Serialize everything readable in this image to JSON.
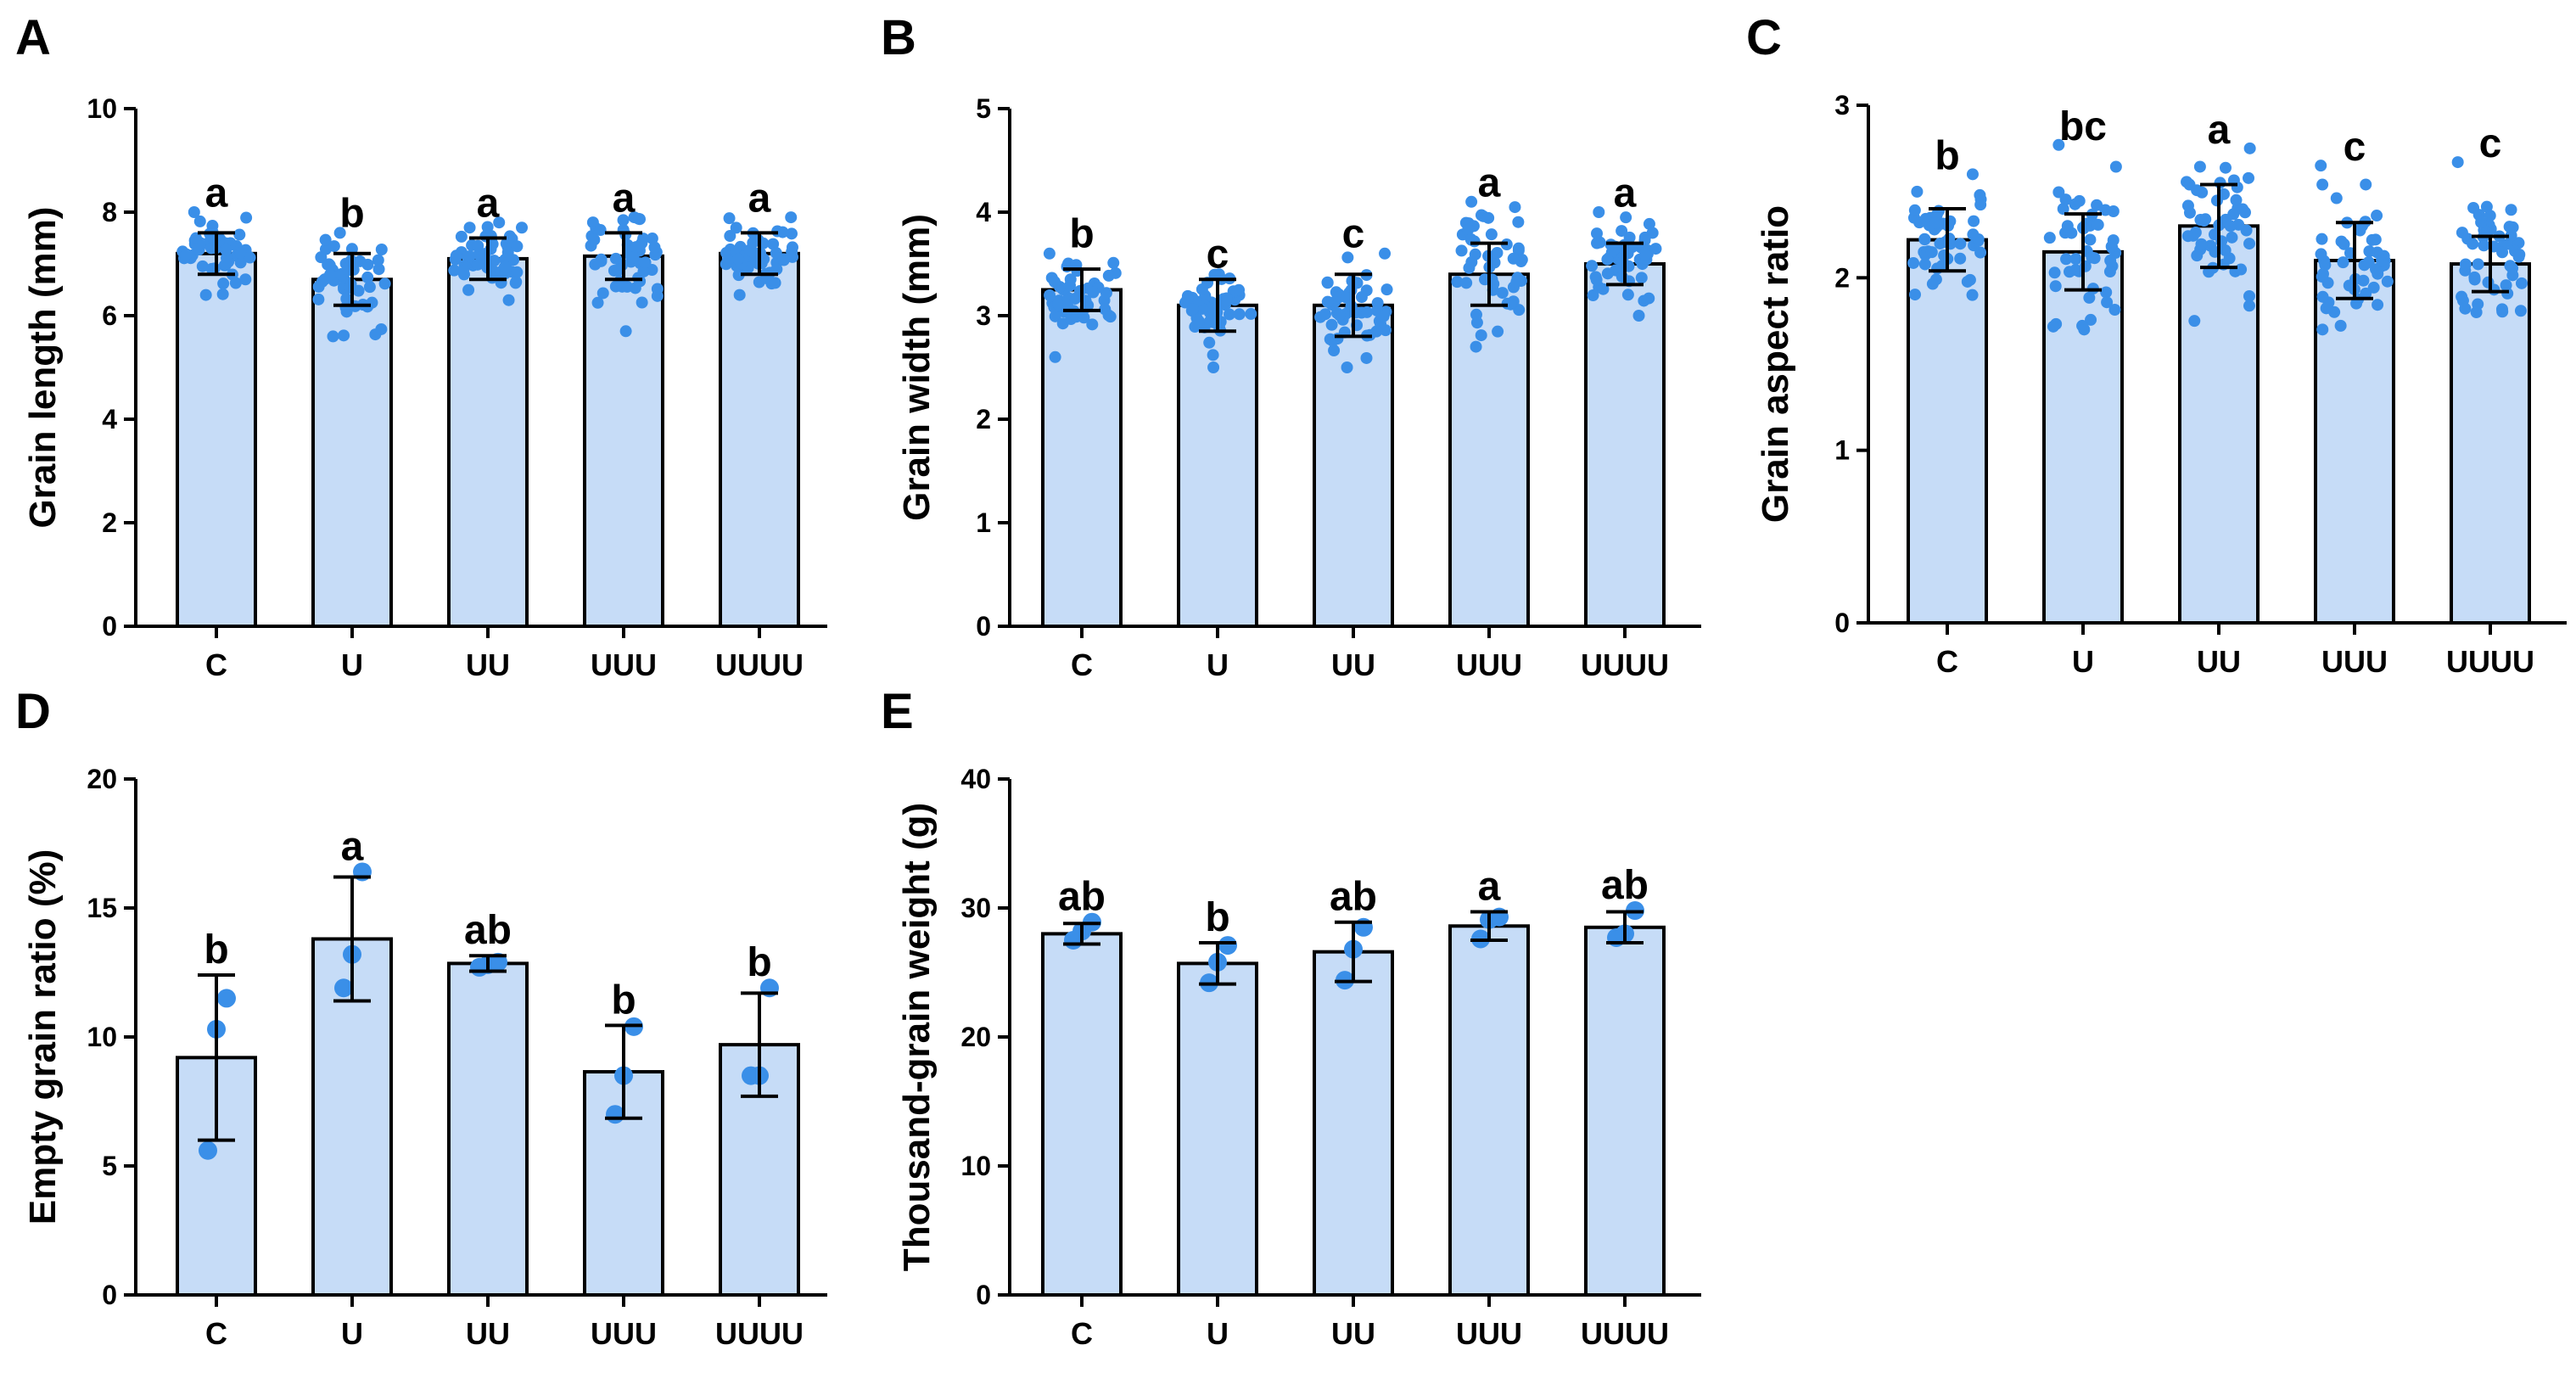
{
  "colors": {
    "bar_fill": "#c6dcf7",
    "dot": "#3a8fe8",
    "stroke": "#000000"
  },
  "chart_data": [
    {
      "id": "A",
      "panel_label": "A",
      "type": "bar",
      "ylabel": "Grain length (mm)",
      "ylim": [
        0,
        10
      ],
      "yticks": [
        0,
        2,
        4,
        6,
        8,
        10
      ],
      "categories": [
        "C",
        "U",
        "UU",
        "UUU",
        "UUUU"
      ],
      "values": [
        7.2,
        6.7,
        7.1,
        7.15,
        7.2
      ],
      "errors": [
        0.4,
        0.5,
        0.4,
        0.45,
        0.4
      ],
      "letters": [
        "a",
        "b",
        "a",
        "a",
        "a"
      ],
      "n_points": 50,
      "point_spread": [
        [
          6.4,
          8.0
        ],
        [
          5.6,
          7.6
        ],
        [
          6.3,
          7.8
        ],
        [
          5.7,
          7.9
        ],
        [
          6.4,
          7.9
        ]
      ]
    },
    {
      "id": "B",
      "panel_label": "B",
      "type": "bar",
      "ylabel": "Grain width (mm)",
      "ylim": [
        0,
        5
      ],
      "yticks": [
        0,
        1,
        2,
        3,
        4,
        5
      ],
      "categories": [
        "C",
        "U",
        "UU",
        "UUU",
        "UUUU"
      ],
      "values": [
        3.25,
        3.1,
        3.1,
        3.4,
        3.5
      ],
      "errors": [
        0.2,
        0.25,
        0.3,
        0.3,
        0.2
      ],
      "letters": [
        "b",
        "c",
        "c",
        "a",
        "a"
      ],
      "n_points": 50,
      "point_spread": [
        [
          2.6,
          3.6
        ],
        [
          2.5,
          3.4
        ],
        [
          2.5,
          3.6
        ],
        [
          2.7,
          4.1
        ],
        [
          3.0,
          4.0
        ]
      ]
    },
    {
      "id": "C",
      "panel_label": "C",
      "type": "bar",
      "ylabel": "Grain aspect ratio",
      "ylim": [
        0,
        3
      ],
      "yticks": [
        0,
        1,
        2,
        3
      ],
      "categories": [
        "C",
        "U",
        "UU",
        "UUU",
        "UUUU"
      ],
      "values": [
        2.22,
        2.15,
        2.3,
        2.1,
        2.08
      ],
      "errors": [
        0.18,
        0.22,
        0.24,
        0.22,
        0.16
      ],
      "letters": [
        "b",
        "bc",
        "a",
        "c",
        "c"
      ],
      "n_points": 50,
      "point_spread": [
        [
          1.9,
          2.6
        ],
        [
          1.7,
          2.77
        ],
        [
          1.75,
          2.75
        ],
        [
          1.7,
          2.65
        ],
        [
          1.8,
          2.67
        ]
      ]
    },
    {
      "id": "D",
      "panel_label": "D",
      "type": "bar",
      "ylabel": "Empty grain ratio (%)",
      "ylim": [
        0,
        20
      ],
      "yticks": [
        0,
        5,
        10,
        15,
        20
      ],
      "categories": [
        "C",
        "U",
        "UU",
        "UUU",
        "UUUU"
      ],
      "values": [
        9.2,
        13.8,
        12.85,
        8.65,
        9.7
      ],
      "errors": [
        3.2,
        2.4,
        0.3,
        1.8,
        2.0
      ],
      "letters": [
        "b",
        "a",
        "ab",
        "b",
        "b"
      ],
      "points": [
        [
          5.6,
          10.3,
          11.5
        ],
        [
          11.9,
          13.2,
          16.4
        ],
        [
          12.7,
          12.8,
          12.9
        ],
        [
          7.0,
          8.5,
          10.4
        ],
        [
          8.5,
          8.5,
          11.9
        ]
      ]
    },
    {
      "id": "E",
      "panel_label": "E",
      "type": "bar",
      "ylabel": "Thousand-grain weight (g)",
      "ylim": [
        0,
        40
      ],
      "yticks": [
        0,
        10,
        20,
        30,
        40
      ],
      "categories": [
        "C",
        "U",
        "UU",
        "UUU",
        "UUUU"
      ],
      "values": [
        28.0,
        25.7,
        26.6,
        28.6,
        28.5
      ],
      "errors": [
        0.8,
        1.6,
        2.3,
        1.1,
        1.2
      ],
      "letters": [
        "ab",
        "b",
        "ab",
        "a",
        "ab"
      ],
      "points": [
        [
          27.5,
          28.2,
          28.9
        ],
        [
          24.2,
          25.8,
          27.1
        ],
        [
          24.4,
          26.8,
          28.5
        ],
        [
          27.6,
          29.1,
          29.3
        ],
        [
          27.7,
          28.0,
          29.8
        ]
      ]
    }
  ]
}
